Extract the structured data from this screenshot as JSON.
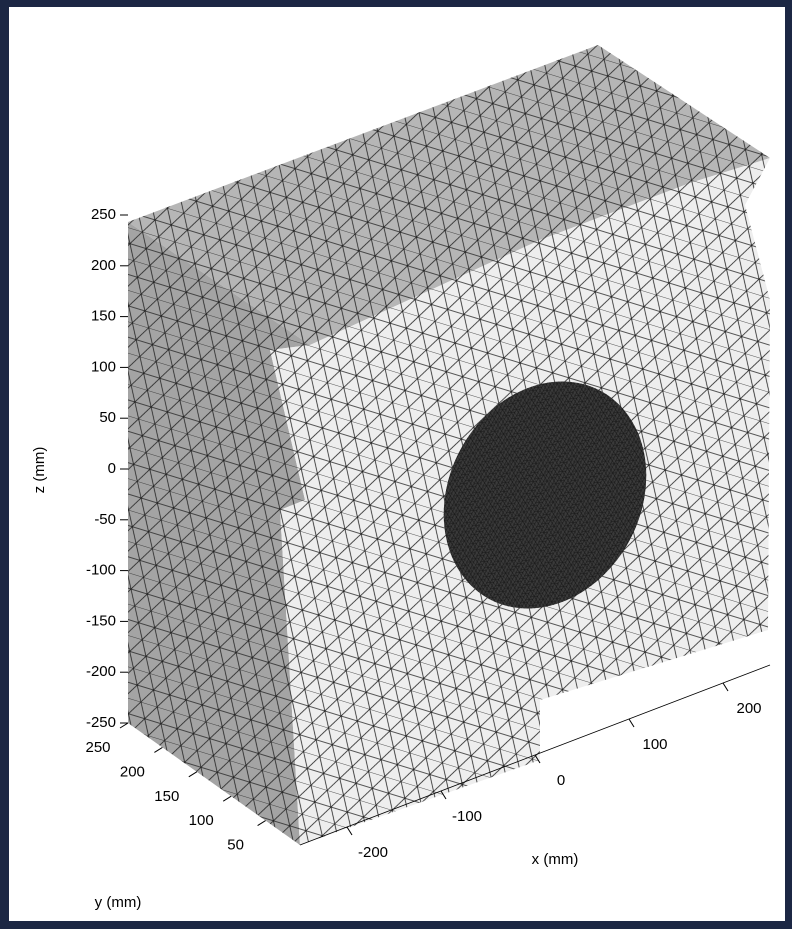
{
  "chart_data": {
    "type": "mesh3d",
    "xlabel": "x (mm)",
    "ylabel": "y (mm)",
    "zlabel": "z (mm)",
    "xlim": [
      -250,
      250
    ],
    "xticks": [
      -200,
      -100,
      0,
      100,
      200
    ],
    "ylim": [
      0,
      250
    ],
    "yticks": [
      50,
      100,
      150,
      200,
      250
    ],
    "zlim": [
      -250,
      250
    ],
    "zticks": [
      -250,
      -200,
      -150,
      -100,
      -50,
      0,
      50,
      100,
      150,
      200,
      250
    ]
  }
}
